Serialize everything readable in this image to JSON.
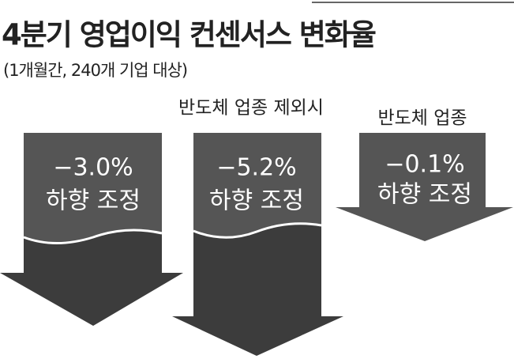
{
  "header": {
    "title": "4분기 영업이익 컨센서스 변화율",
    "subtitle": "(1개월간, 240개 기업 대상)"
  },
  "arrows": [
    {
      "change": "−3.0%",
      "note": "하향 조정"
    },
    {
      "label": "반도체 업종 제외시",
      "change": "−5.2%",
      "note": "하향 조정"
    },
    {
      "label": "반도체 업종",
      "change": "−0.1%",
      "note": "하향 조정"
    }
  ]
}
